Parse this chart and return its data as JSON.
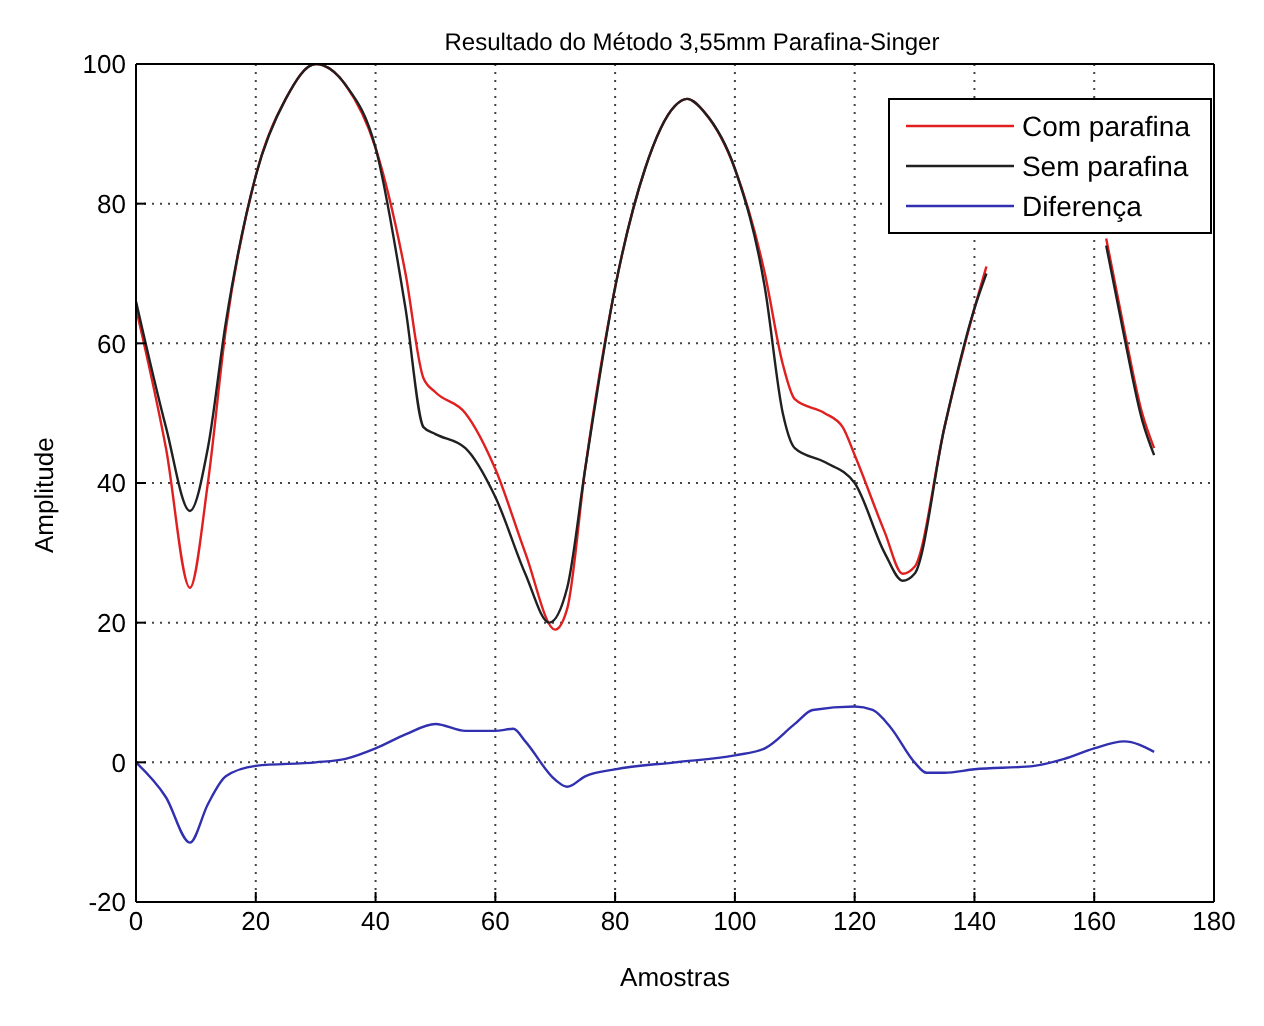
{
  "chart_data": {
    "type": "line",
    "title": "Resultado do Método 3,55mm Parafina-Singer",
    "xlabel": "Amostras",
    "ylabel": "Amplitude",
    "xlim": [
      0,
      180
    ],
    "xticks": [
      0,
      20,
      40,
      60,
      80,
      100,
      120,
      140,
      160,
      180
    ],
    "ylim": [
      -20,
      100
    ],
    "yticks": [
      -20,
      0,
      20,
      40,
      60,
      80,
      100
    ],
    "grid": true,
    "legend": "top right",
    "marker": "none",
    "series": [
      {
        "name": "Com parafina",
        "color": "#e02020",
        "x": [
          0,
          5,
          9,
          12,
          15,
          20,
          25,
          30,
          35,
          40,
          45,
          48,
          50,
          55,
          60,
          65,
          70,
          72,
          75,
          80,
          85,
          90,
          92,
          95,
          100,
          105,
          108,
          110,
          115,
          118,
          120,
          125,
          128,
          130,
          135,
          140,
          142,
          147,
          162,
          165,
          168,
          170
        ],
        "values": [
          65,
          45,
          25,
          40,
          62,
          84,
          95,
          100,
          97,
          88,
          70,
          55,
          53,
          50,
          42,
          30,
          19,
          22,
          42,
          68,
          85,
          94,
          95,
          93,
          85,
          70,
          57,
          52,
          50,
          48,
          44,
          33,
          27,
          28,
          48,
          65,
          71,
          null,
          75,
          62,
          50,
          45
        ]
      },
      {
        "name": "Sem parafina",
        "color": "#202020",
        "x": [
          0,
          5,
          9,
          12,
          15,
          20,
          25,
          30,
          35,
          40,
          45,
          48,
          50,
          55,
          60,
          65,
          69,
          72,
          75,
          80,
          85,
          90,
          92,
          95,
          100,
          105,
          108,
          110,
          115,
          120,
          125,
          128,
          130,
          135,
          140,
          142,
          147,
          162,
          165,
          168,
          170
        ],
        "values": [
          66,
          48,
          36,
          45,
          63,
          84,
          95,
          100,
          97,
          88,
          65,
          48,
          47,
          45,
          38,
          27,
          20,
          25,
          42,
          68,
          85,
          94,
          95,
          93,
          85,
          68,
          50,
          45,
          43,
          40,
          30,
          26,
          27,
          48,
          65,
          70,
          null,
          74,
          61,
          49,
          44
        ]
      },
      {
        "name": "Diferença",
        "color": "#3030b0",
        "x": [
          0,
          5,
          9,
          12,
          15,
          20,
          30,
          35,
          40,
          45,
          50,
          55,
          60,
          63,
          65,
          70,
          72,
          75,
          80,
          90,
          100,
          105,
          110,
          113,
          120,
          123,
          126,
          130,
          132,
          135,
          140,
          150,
          155,
          160,
          165,
          170
        ],
        "values": [
          0,
          -5,
          -11.5,
          -6,
          -2,
          -0.5,
          0,
          0.5,
          2,
          4,
          5.5,
          4.5,
          4.5,
          4.8,
          3,
          -2.5,
          -3.5,
          -2,
          -1,
          0,
          1,
          2,
          5.5,
          7.5,
          8,
          7.5,
          5,
          0,
          -1.5,
          -1.5,
          -1,
          -0.5,
          0.5,
          2,
          3,
          1.5
        ]
      }
    ]
  }
}
